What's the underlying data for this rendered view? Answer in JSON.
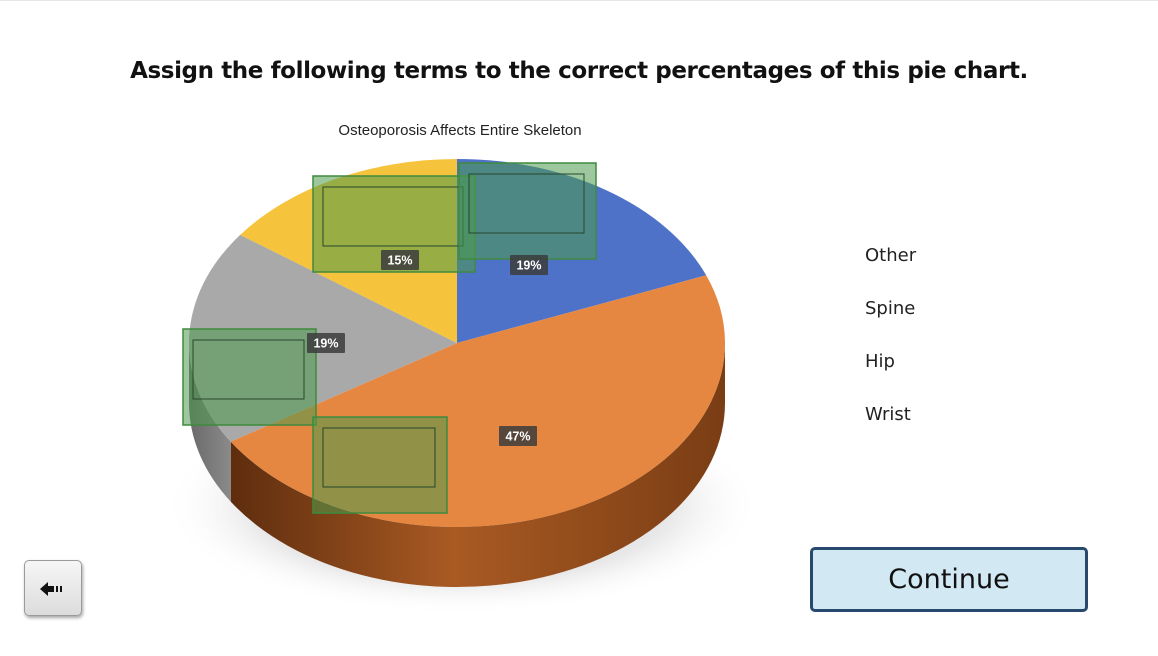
{
  "instruction": "Assign the following terms to the correct percentages of this pie chart.",
  "terms": [
    "Other",
    "Spine",
    "Hip",
    "Wrist"
  ],
  "buttons": {
    "back_icon": "back-arrow-icon",
    "continue_label": "Continue"
  },
  "colors": {
    "slice_blue": "#4f72c9",
    "slice_orange": "#e58741",
    "slice_gray": "#a9a9a9",
    "slice_yellow": "#f6c33c",
    "dropzone_fill": "#4c9a4c",
    "continue_border": "#27496d",
    "continue_fill": "#d2e8f3"
  },
  "chart_data": {
    "type": "pie",
    "title": "Osteoporosis Affects Entire Skeleton",
    "values": [
      19,
      47,
      19,
      15
    ],
    "labels": [
      "19%",
      "47%",
      "19%",
      "15%"
    ],
    "slice_colors": [
      "#4f72c9",
      "#e58741",
      "#a9a9a9",
      "#f6c33c"
    ],
    "style": "3d-tilted",
    "drop_targets": 4
  }
}
